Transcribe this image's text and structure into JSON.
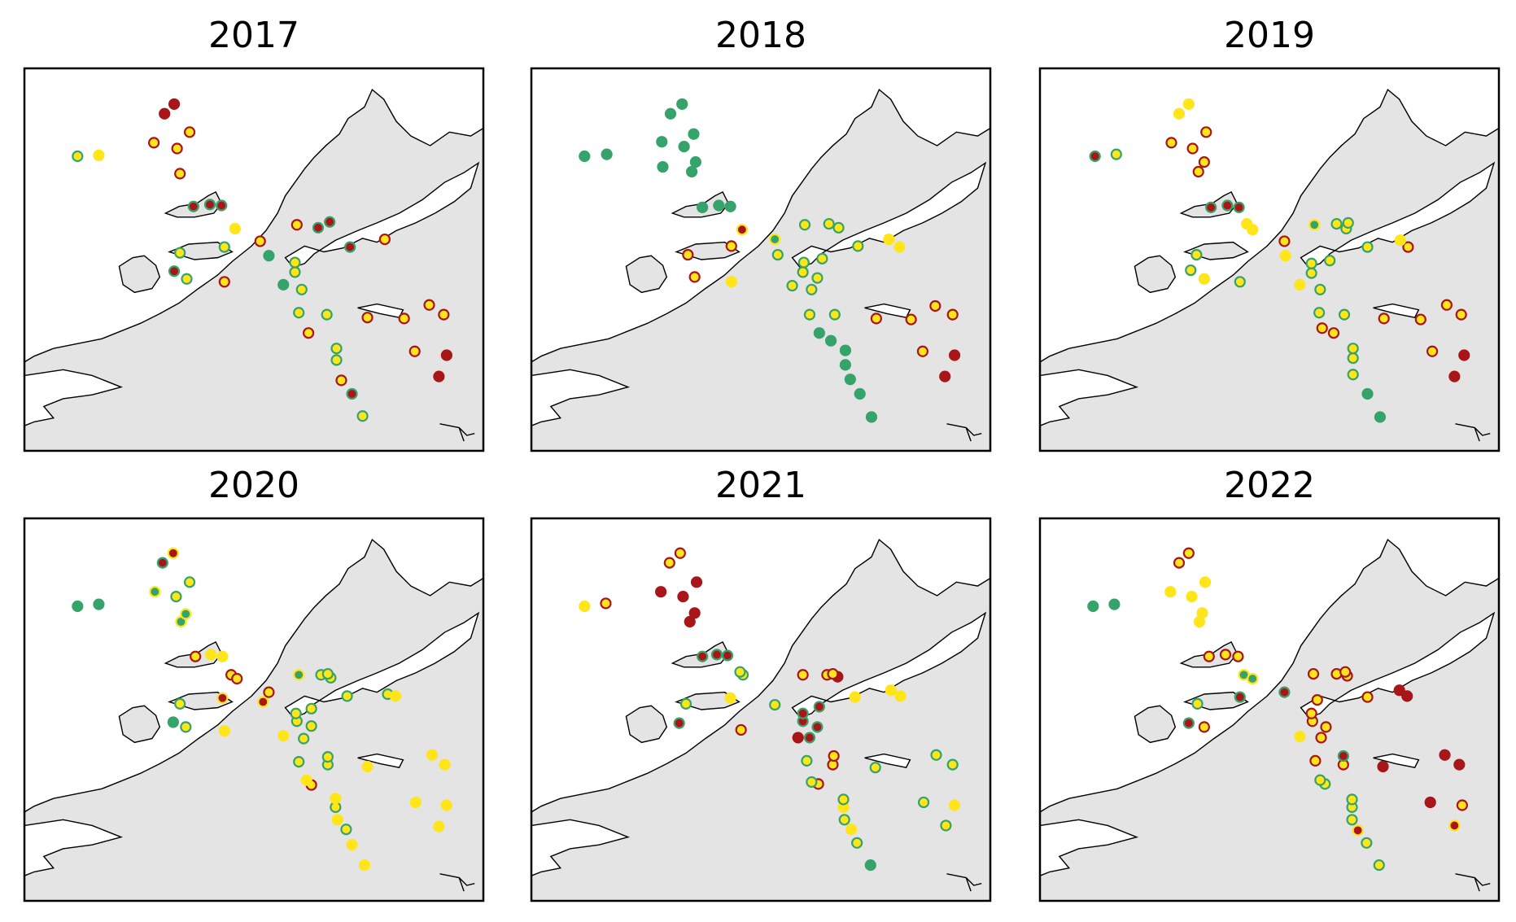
{
  "xlim": [
    0,
    475
  ],
  "ylim": [
    396,
    0
  ],
  "styles": {
    "G": {
      "fill": "#35a36a",
      "edge": "#35a36a"
    },
    "R": {
      "fill": "#a8161a",
      "edge": "#a8161a"
    },
    "Y": {
      "fill": "#ffe51a",
      "edge": "#ffe51a"
    },
    "gy": {
      "fill": "#35a36a",
      "edge": "#ffe51a"
    },
    "yg": {
      "fill": "#ffe51a",
      "edge": "#35a36a"
    },
    "ry": {
      "fill": "#a8161a",
      "edge": "#ffe51a"
    },
    "yr": {
      "fill": "#ffe51a",
      "edge": "#a8161a"
    },
    "rg": {
      "fill": "#a8161a",
      "edge": "#35a36a"
    }
  },
  "panels": [
    {
      "title": "2017",
      "points": [
        [
          350,
          36,
          "yg"
        ],
        [
          339,
          59,
          "rg"
        ],
        [
          328,
          73,
          "yr"
        ],
        [
          323,
          94,
          "yg"
        ],
        [
          323,
          106,
          "yg"
        ],
        [
          294,
          122,
          "yr"
        ],
        [
          429,
          77,
          "R"
        ],
        [
          437,
          99,
          "R"
        ],
        [
          404,
          103,
          "yr"
        ],
        [
          284,
          143,
          "yg"
        ],
        [
          313,
          141,
          "yg"
        ],
        [
          355,
          138,
          "yr"
        ],
        [
          393,
          137,
          "yr"
        ],
        [
          419,
          151,
          "yr"
        ],
        [
          434,
          141,
          "yr"
        ],
        [
          268,
          172,
          "G"
        ],
        [
          287,
          167,
          "yg"
        ],
        [
          280,
          185,
          "yg"
        ],
        [
          280,
          195,
          "yg"
        ],
        [
          253,
          202,
          "G"
        ],
        [
          244,
          217,
          "yr"
        ],
        [
          207,
          175,
          "yr"
        ],
        [
          168,
          178,
          "yg"
        ],
        [
          155,
          186,
          "rg"
        ],
        [
          161,
          205,
          "yg"
        ],
        [
          207,
          211,
          "yg"
        ],
        [
          218,
          230,
          "Y"
        ],
        [
          282,
          234,
          "yr"
        ],
        [
          304,
          231,
          "rg"
        ],
        [
          316,
          237,
          "rg"
        ],
        [
          337,
          211,
          "rg"
        ],
        [
          373,
          219,
          "yr"
        ],
        [
          175,
          253,
          "rg"
        ],
        [
          192,
          255,
          "rg"
        ],
        [
          204,
          254,
          "rg"
        ],
        [
          55,
          305,
          "yg"
        ],
        [
          77,
          306,
          "Y"
        ],
        [
          161,
          287,
          "yr"
        ],
        [
          134,
          319,
          "yr"
        ],
        [
          158,
          313,
          "yr"
        ],
        [
          171,
          330,
          "yr"
        ],
        [
          145,
          349,
          "R"
        ],
        [
          155,
          359,
          "R"
        ]
      ]
    },
    {
      "title": "2018",
      "points": [
        [
          352,
          35,
          "G"
        ],
        [
          340,
          59,
          "G"
        ],
        [
          330,
          74,
          "G"
        ],
        [
          325,
          89,
          "G"
        ],
        [
          325,
          104,
          "G"
        ],
        [
          310,
          114,
          "G"
        ],
        [
          298,
          122,
          "G"
        ],
        [
          288,
          141,
          "yg"
        ],
        [
          314,
          141,
          "yg"
        ],
        [
          428,
          77,
          "R"
        ],
        [
          438,
          99,
          "R"
        ],
        [
          405,
          103,
          "yr"
        ],
        [
          357,
          137,
          "yr"
        ],
        [
          393,
          136,
          "yr"
        ],
        [
          418,
          150,
          "yr"
        ],
        [
          436,
          141,
          "yr"
        ],
        [
          270,
          171,
          "yg"
        ],
        [
          290,
          167,
          "yg"
        ],
        [
          296,
          179,
          "yg"
        ],
        [
          281,
          185,
          "yg"
        ],
        [
          282,
          195,
          "yg"
        ],
        [
          301,
          199,
          "yg"
        ],
        [
          338,
          212,
          "yg"
        ],
        [
          381,
          211,
          "Y"
        ],
        [
          370,
          219,
          "Y"
        ],
        [
          169,
          180,
          "yr"
        ],
        [
          207,
          175,
          "Y"
        ],
        [
          162,
          203,
          "yr"
        ],
        [
          255,
          203,
          "yg"
        ],
        [
          252,
          219,
          "gy"
        ],
        [
          207,
          212,
          "yr"
        ],
        [
          218,
          229,
          "ry"
        ],
        [
          283,
          234,
          "yg"
        ],
        [
          308,
          235,
          "yg"
        ],
        [
          318,
          231,
          "yg"
        ],
        [
          177,
          252,
          "G"
        ],
        [
          194,
          254,
          "G"
        ],
        [
          206,
          253,
          "G"
        ],
        [
          166,
          289,
          "G"
        ],
        [
          170,
          299,
          "G"
        ],
        [
          55,
          305,
          "G"
        ],
        [
          78,
          307,
          "G"
        ],
        [
          136,
          294,
          "G"
        ],
        [
          158,
          315,
          "G"
        ],
        [
          135,
          320,
          "G"
        ],
        [
          168,
          328,
          "G"
        ],
        [
          144,
          349,
          "G"
        ],
        [
          156,
          359,
          "G"
        ]
      ]
    },
    {
      "title": "2019",
      "points": [
        [
          352,
          35,
          "G"
        ],
        [
          339,
          59,
          "G"
        ],
        [
          324,
          79,
          "yg"
        ],
        [
          324,
          96,
          "yg"
        ],
        [
          324,
          106,
          "yg"
        ],
        [
          304,
          122,
          "yr"
        ],
        [
          292,
          127,
          "yr"
        ],
        [
          429,
          77,
          "R"
        ],
        [
          439,
          99,
          "R"
        ],
        [
          406,
          103,
          "yr"
        ],
        [
          356,
          137,
          "yr"
        ],
        [
          394,
          136,
          "yr"
        ],
        [
          421,
          151,
          "yr"
        ],
        [
          436,
          141,
          "yr"
        ],
        [
          289,
          143,
          "yg"
        ],
        [
          315,
          141,
          "yg"
        ],
        [
          269,
          172,
          "Y"
        ],
        [
          290,
          167,
          "yg"
        ],
        [
          281,
          184,
          "yg"
        ],
        [
          281,
          194,
          "yg"
        ],
        [
          300,
          197,
          "yg"
        ],
        [
          339,
          211,
          "yg"
        ],
        [
          381,
          211,
          "yr"
        ],
        [
          373,
          218,
          "Y"
        ],
        [
          254,
          202,
          "Y"
        ],
        [
          253,
          217,
          "yr"
        ],
        [
          220,
          229,
          "Y"
        ],
        [
          214,
          235,
          "Y"
        ],
        [
          170,
          178,
          "Y"
        ],
        [
          207,
          175,
          "yg"
        ],
        [
          156,
          187,
          "yg"
        ],
        [
          162,
          203,
          "yg"
        ],
        [
          284,
          234,
          "gy"
        ],
        [
          307,
          235,
          "yg"
        ],
        [
          317,
          230,
          "yg"
        ],
        [
          319,
          236,
          "yg"
        ],
        [
          177,
          252,
          "rg"
        ],
        [
          194,
          254,
          "rg"
        ],
        [
          206,
          252,
          "rg"
        ],
        [
          57,
          305,
          "rg"
        ],
        [
          79,
          307,
          "yg"
        ],
        [
          164,
          289,
          "yr"
        ],
        [
          170,
          299,
          "yr"
        ],
        [
          136,
          319,
          "yr"
        ],
        [
          158,
          313,
          "yr"
        ],
        [
          172,
          330,
          "yr"
        ],
        [
          144,
          349,
          "Y"
        ],
        [
          154,
          359,
          "Y"
        ]
      ]
    },
    {
      "title": "2020",
      "points": [
        [
          352,
          37,
          "Y"
        ],
        [
          339,
          58,
          "Y"
        ],
        [
          333,
          74,
          "yg"
        ],
        [
          324,
          84,
          "Y"
        ],
        [
          322,
          97,
          "yg"
        ],
        [
          322,
          106,
          "Y"
        ],
        [
          297,
          120,
          "yr"
        ],
        [
          292,
          125,
          "Y"
        ],
        [
          429,
          77,
          "Y"
        ],
        [
          437,
          99,
          "Y"
        ],
        [
          405,
          102,
          "Y"
        ],
        [
          355,
          139,
          "Y"
        ],
        [
          314,
          141,
          "yg"
        ],
        [
          314,
          149,
          "yg"
        ],
        [
          284,
          144,
          "yg"
        ],
        [
          422,
          151,
          "Y"
        ],
        [
          435,
          141,
          "Y"
        ],
        [
          268,
          171,
          "Y"
        ],
        [
          289,
          168,
          "yg"
        ],
        [
          297,
          181,
          "yg"
        ],
        [
          282,
          186,
          "yg"
        ],
        [
          281,
          194,
          "yg"
        ],
        [
          297,
          199,
          "yg"
        ],
        [
          334,
          212,
          "yg"
        ],
        [
          376,
          214,
          "yg"
        ],
        [
          384,
          212,
          "Y"
        ],
        [
          207,
          176,
          "Y"
        ],
        [
          167,
          180,
          "yg"
        ],
        [
          154,
          185,
          "G"
        ],
        [
          161,
          204,
          "yg"
        ],
        [
          205,
          210,
          "ry"
        ],
        [
          247,
          206,
          "ry"
        ],
        [
          253,
          216,
          "yr"
        ],
        [
          214,
          234,
          "yr"
        ],
        [
          220,
          230,
          "yr"
        ],
        [
          284,
          234,
          "gy"
        ],
        [
          307,
          234,
          "yg"
        ],
        [
          317,
          231,
          "yg"
        ],
        [
          314,
          235,
          "yg"
        ],
        [
          177,
          253,
          "yr"
        ],
        [
          193,
          255,
          "Y"
        ],
        [
          205,
          253,
          "Y"
        ],
        [
          55,
          305,
          "G"
        ],
        [
          77,
          307,
          "G"
        ],
        [
          162,
          289,
          "gy"
        ],
        [
          167,
          297,
          "gy"
        ],
        [
          135,
          320,
          "gy"
        ],
        [
          157,
          315,
          "yg"
        ],
        [
          171,
          330,
          "yg"
        ],
        [
          143,
          350,
          "rg"
        ],
        [
          154,
          360,
          "ry"
        ]
      ]
    },
    {
      "title": "2021",
      "points": [
        [
          351,
          37,
          "G"
        ],
        [
          337,
          60,
          "yg"
        ],
        [
          331,
          74,
          "Y"
        ],
        [
          324,
          84,
          "yg"
        ],
        [
          323,
          97,
          "Y"
        ],
        [
          323,
          105,
          "yg"
        ],
        [
          297,
          121,
          "yr"
        ],
        [
          290,
          123,
          "yg"
        ],
        [
          429,
          78,
          "yg"
        ],
        [
          438,
          99,
          "Y"
        ],
        [
          406,
          102,
          "yg"
        ],
        [
          356,
          138,
          "yg"
        ],
        [
          312,
          141,
          "yr"
        ],
        [
          313,
          150,
          "yr"
        ],
        [
          285,
          145,
          "yg"
        ],
        [
          419,
          151,
          "yg"
        ],
        [
          436,
          141,
          "yg"
        ],
        [
          276,
          169,
          "R"
        ],
        [
          288,
          169,
          "rg"
        ],
        [
          296,
          180,
          "rg"
        ],
        [
          281,
          186,
          "rg"
        ],
        [
          281,
          194,
          "rg"
        ],
        [
          298,
          201,
          "rg"
        ],
        [
          335,
          211,
          "Y"
        ],
        [
          382,
          212,
          "Y"
        ],
        [
          372,
          218,
          "Y"
        ],
        [
          217,
          177,
          "yr"
        ],
        [
          153,
          184,
          "rg"
        ],
        [
          160,
          204,
          "yg"
        ],
        [
          206,
          210,
          "Y"
        ],
        [
          252,
          203,
          "yg"
        ],
        [
          219,
          234,
          "yg"
        ],
        [
          216,
          237,
          "yg"
        ],
        [
          281,
          234,
          "yr"
        ],
        [
          306,
          234,
          "yr"
        ],
        [
          317,
          232,
          "R"
        ],
        [
          312,
          235,
          "yr"
        ],
        [
          177,
          253,
          "rg"
        ],
        [
          192,
          255,
          "rg"
        ],
        [
          203,
          254,
          "rg"
        ],
        [
          55,
          305,
          "Y"
        ],
        [
          77,
          308,
          "yr"
        ],
        [
          164,
          289,
          "R"
        ],
        [
          169,
          298,
          "R"
        ],
        [
          134,
          320,
          "R"
        ],
        [
          157,
          315,
          "R"
        ],
        [
          171,
          330,
          "R"
        ],
        [
          143,
          350,
          "yr"
        ],
        [
          154,
          360,
          "yr"
        ]
      ]
    },
    {
      "title": "2022",
      "points": [
        [
          351,
          37,
          "yg"
        ],
        [
          338,
          60,
          "yg"
        ],
        [
          329,
          73,
          "ry"
        ],
        [
          323,
          84,
          "yg"
        ],
        [
          323,
          97,
          "yg"
        ],
        [
          323,
          105,
          "yg"
        ],
        [
          295,
          121,
          "yg"
        ],
        [
          290,
          125,
          "yg"
        ],
        [
          429,
          78,
          "ry"
        ],
        [
          437,
          99,
          "yr"
        ],
        [
          404,
          102,
          "R"
        ],
        [
          355,
          139,
          "R"
        ],
        [
          314,
          141,
          "yr"
        ],
        [
          314,
          150,
          "rg"
        ],
        [
          285,
          145,
          "yr"
        ],
        [
          419,
          151,
          "R"
        ],
        [
          434,
          141,
          "R"
        ],
        [
          269,
          170,
          "Y"
        ],
        [
          291,
          169,
          "yr"
        ],
        [
          296,
          180,
          "yr"
        ],
        [
          282,
          186,
          "yr"
        ],
        [
          281,
          194,
          "yr"
        ],
        [
          287,
          208,
          "yr"
        ],
        [
          339,
          211,
          "yr"
        ],
        [
          380,
          212,
          "R"
        ],
        [
          372,
          218,
          "R"
        ],
        [
          170,
          180,
          "yr"
        ],
        [
          154,
          184,
          "rg"
        ],
        [
          163,
          204,
          "yg"
        ],
        [
          207,
          211,
          "rg"
        ],
        [
          253,
          216,
          "rg"
        ],
        [
          211,
          234,
          "gy"
        ],
        [
          220,
          230,
          "gy"
        ],
        [
          283,
          235,
          "yr"
        ],
        [
          307,
          235,
          "yr"
        ],
        [
          318,
          233,
          "yr"
        ],
        [
          316,
          237,
          "yr"
        ],
        [
          175,
          253,
          "yr"
        ],
        [
          192,
          255,
          "yr"
        ],
        [
          205,
          253,
          "yr"
        ],
        [
          55,
          305,
          "G"
        ],
        [
          77,
          307,
          "G"
        ],
        [
          165,
          289,
          "Y"
        ],
        [
          168,
          298,
          "Y"
        ],
        [
          135,
          320,
          "Y"
        ],
        [
          157,
          315,
          "Y"
        ],
        [
          171,
          330,
          "Y"
        ],
        [
          144,
          350,
          "yr"
        ],
        [
          154,
          360,
          "yr"
        ]
      ]
    }
  ]
}
